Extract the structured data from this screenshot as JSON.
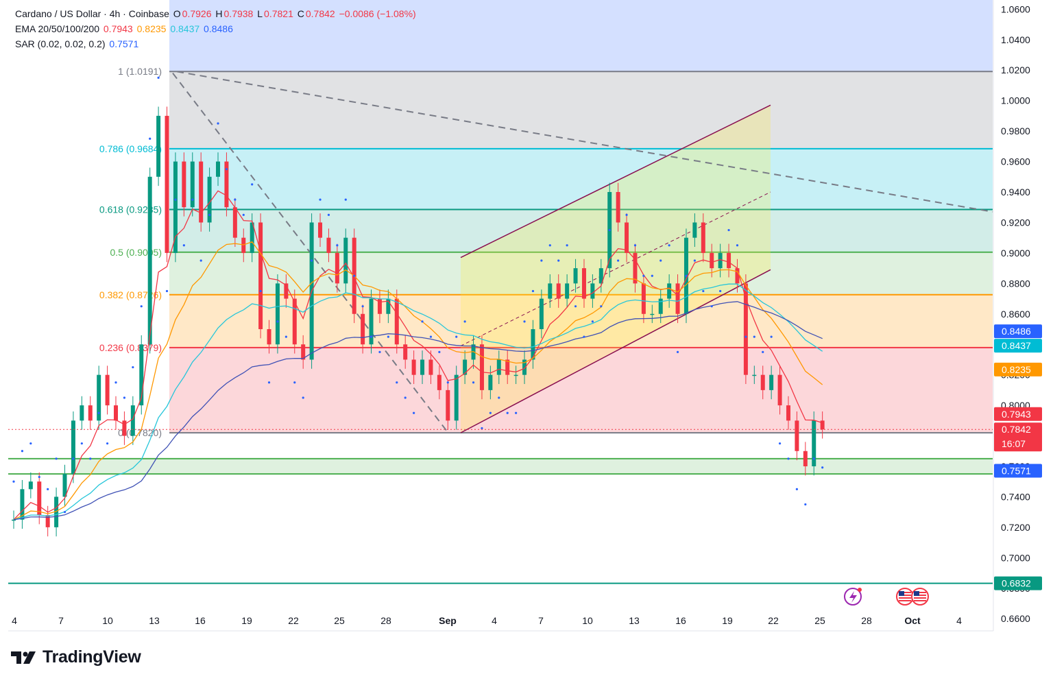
{
  "header": {
    "line1": {
      "symbol": "Cardano / US Dollar · 4h · Coinbase",
      "o_label": "O",
      "o": "0.7926",
      "h_label": "H",
      "h": "0.7938",
      "l_label": "L",
      "l": "0.7821",
      "c_label": "C",
      "c": "0.7842",
      "change": "−0.0086 (−1.08%)"
    },
    "line2": {
      "label": "EMA 20/50/100/200",
      "ema20": "0.7943",
      "ema50": "0.8235",
      "ema100": "0.8437",
      "ema200": "0.8486"
    },
    "line3": {
      "label": "SAR (0.02, 0.02, 0.2)",
      "value": "0.7571"
    }
  },
  "colors": {
    "up": "#089981",
    "down": "#f23645",
    "ema20": "#f23645",
    "ema50": "#ff9800",
    "ema100": "#26c6da",
    "ema200": "#3f51b5",
    "sar": "#2962ff"
  },
  "chart_data": {
    "type": "line",
    "symbol": "Cardano / US Dollar",
    "interval": "4h",
    "exchange": "Coinbase",
    "ylim": [
      0.652,
      1.066
    ],
    "y_ticks": [
      "0.6600",
      "0.6800",
      "0.7000",
      "0.7200",
      "0.7400",
      "0.7600",
      "0.7800",
      "0.8000",
      "0.8200",
      "0.8400",
      "0.8600",
      "0.8800",
      "0.9000",
      "0.9200",
      "0.9400",
      "0.9600",
      "0.9800",
      "1.0000",
      "1.0200",
      "1.0400",
      "1.0600"
    ],
    "x_ticks": [
      "4",
      "7",
      "10",
      "13",
      "16",
      "19",
      "22",
      "25",
      "28",
      "Sep",
      "4",
      "7",
      "10",
      "13",
      "16",
      "19",
      "22",
      "25",
      "28",
      "Oct",
      "4"
    ],
    "close_path": [
      [
        0,
        0.725
      ],
      [
        1,
        0.745
      ],
      [
        2,
        0.75
      ],
      [
        3,
        0.728
      ],
      [
        4,
        0.72
      ],
      [
        5,
        0.74
      ],
      [
        6,
        0.755
      ],
      [
        7,
        0.79
      ],
      [
        8,
        0.8
      ],
      [
        9,
        0.79
      ],
      [
        10,
        0.82
      ],
      [
        11,
        0.8
      ],
      [
        12,
        0.79
      ],
      [
        13,
        0.78
      ],
      [
        14,
        0.8
      ],
      [
        15,
        0.84
      ],
      [
        16,
        0.95
      ],
      [
        17,
        0.99
      ],
      [
        18,
        0.9
      ],
      [
        19,
        0.96
      ],
      [
        20,
        0.93
      ],
      [
        21,
        0.96
      ],
      [
        22,
        0.92
      ],
      [
        23,
        0.95
      ],
      [
        24,
        0.96
      ],
      [
        25,
        0.93
      ],
      [
        26,
        0.91
      ],
      [
        27,
        0.9
      ],
      [
        28,
        0.92
      ],
      [
        29,
        0.85
      ],
      [
        30,
        0.84
      ],
      [
        31,
        0.88
      ],
      [
        32,
        0.87
      ],
      [
        33,
        0.84
      ],
      [
        34,
        0.83
      ],
      [
        35,
        0.92
      ],
      [
        36,
        0.91
      ],
      [
        37,
        0.9
      ],
      [
        38,
        0.88
      ],
      [
        39,
        0.91
      ],
      [
        40,
        0.86
      ],
      [
        41,
        0.84
      ],
      [
        42,
        0.87
      ],
      [
        43,
        0.86
      ],
      [
        44,
        0.87
      ],
      [
        45,
        0.84
      ],
      [
        46,
        0.83
      ],
      [
        47,
        0.82
      ],
      [
        48,
        0.83
      ],
      [
        49,
        0.82
      ],
      [
        50,
        0.81
      ],
      [
        51,
        0.79
      ],
      [
        52,
        0.82
      ],
      [
        53,
        0.83
      ],
      [
        54,
        0.84
      ],
      [
        55,
        0.81
      ],
      [
        56,
        0.82
      ],
      [
        57,
        0.83
      ],
      [
        58,
        0.82
      ],
      [
        59,
        0.82
      ],
      [
        60,
        0.83
      ],
      [
        61,
        0.85
      ],
      [
        62,
        0.87
      ],
      [
        63,
        0.88
      ],
      [
        64,
        0.87
      ],
      [
        65,
        0.88
      ],
      [
        66,
        0.89
      ],
      [
        67,
        0.87
      ],
      [
        68,
        0.88
      ],
      [
        69,
        0.89
      ],
      [
        70,
        0.94
      ],
      [
        71,
        0.92
      ],
      [
        72,
        0.9
      ],
      [
        73,
        0.88
      ],
      [
        74,
        0.86
      ],
      [
        75,
        0.86
      ],
      [
        76,
        0.87
      ],
      [
        77,
        0.88
      ],
      [
        78,
        0.86
      ],
      [
        79,
        0.91
      ],
      [
        80,
        0.92
      ],
      [
        81,
        0.9
      ],
      [
        82,
        0.89
      ],
      [
        83,
        0.9
      ],
      [
        84,
        0.89
      ],
      [
        85,
        0.88
      ],
      [
        86,
        0.82
      ],
      [
        87,
        0.82
      ],
      [
        88,
        0.81
      ],
      [
        89,
        0.82
      ],
      [
        90,
        0.8
      ],
      [
        91,
        0.79
      ],
      [
        92,
        0.77
      ],
      [
        93,
        0.76
      ],
      [
        94,
        0.79
      ],
      [
        95,
        0.7842
      ]
    ],
    "x_range": [
      0,
      115
    ],
    "series": [
      {
        "name": "EMA 20",
        "value": "0.7943",
        "color": "#f23645"
      },
      {
        "name": "EMA 50",
        "value": "0.8235",
        "color": "#ff9800"
      },
      {
        "name": "EMA 100",
        "value": "0.8437",
        "color": "#26c6da"
      },
      {
        "name": "EMA 200",
        "value": "0.8486",
        "color": "#3f51b5"
      },
      {
        "name": "SAR",
        "value": "0.7571",
        "color": "#2962ff"
      }
    ],
    "fib_levels": [
      {
        "label": "1 (1.0191)",
        "value": 1.0191,
        "color": "#787b86"
      },
      {
        "label": "0.786 (0.9684)",
        "value": 0.9684,
        "color": "#00bcd4"
      },
      {
        "label": "0.618 (0.9285)",
        "value": 0.9285,
        "color": "#089981"
      },
      {
        "label": "0.5 (0.9005)",
        "value": 0.9005,
        "color": "#4caf50"
      },
      {
        "label": "0.382 (0.8726)",
        "value": 0.8726,
        "color": "#ff9800"
      },
      {
        "label": "0.236 (0.8379)",
        "value": 0.8379,
        "color": "#f23645"
      },
      {
        "label": "0 (0.7820)",
        "value": 0.782,
        "color": "#787b86"
      }
    ],
    "horizontal_lines": [
      0.765,
      0.755,
      0.6832
    ],
    "price_tags": [
      {
        "text": "0.8486",
        "value": 0.8486,
        "color": "#2962ff"
      },
      {
        "text": "0.8437",
        "value": 0.8437,
        "color": "#00bcd4"
      },
      {
        "text": "0.8235",
        "value": 0.8235,
        "color": "#ff9800"
      },
      {
        "text": "0.7943",
        "value": 0.7943,
        "color": "#f23645"
      },
      {
        "text": "0.7842",
        "value": 0.7842,
        "color": "#f23645",
        "countdown": "16:07"
      },
      {
        "text": "0.7571",
        "value": 0.7571,
        "color": "#2962ff"
      },
      {
        "text": "0.6832",
        "value": 0.6832,
        "color": "#089981"
      }
    ]
  },
  "branding": {
    "logo_text": "TradingView"
  }
}
